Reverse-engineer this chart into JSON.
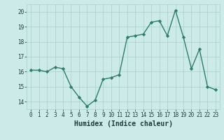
{
  "x": [
    0,
    1,
    2,
    3,
    4,
    5,
    6,
    7,
    8,
    9,
    10,
    11,
    12,
    13,
    14,
    15,
    16,
    17,
    18,
    19,
    20,
    21,
    22,
    23
  ],
  "y": [
    16.1,
    16.1,
    16.0,
    16.3,
    16.2,
    15.0,
    14.3,
    13.7,
    14.1,
    15.5,
    15.6,
    15.8,
    18.3,
    18.4,
    18.5,
    19.3,
    19.4,
    18.4,
    20.1,
    18.3,
    16.2,
    17.5,
    15.0,
    14.8
  ],
  "line_color": "#2d7d6e",
  "marker": "D",
  "markersize": 2.2,
  "linewidth": 1.0,
  "bg_color": "#cceae7",
  "grid_color": "#aacfcc",
  "xlabel": "Humidex (Indice chaleur)",
  "xlim": [
    -0.5,
    23.5
  ],
  "ylim": [
    13.5,
    20.5
  ],
  "yticks": [
    14,
    15,
    16,
    17,
    18,
    19,
    20
  ],
  "xtick_labels": [
    "0",
    "1",
    "2",
    "3",
    "4",
    "5",
    "6",
    "7",
    "8",
    "9",
    "10",
    "11",
    "12",
    "13",
    "14",
    "15",
    "16",
    "17",
    "18",
    "19",
    "20",
    "21",
    "22",
    "23"
  ],
  "tick_fontsize": 5.5,
  "xlabel_fontsize": 7.0,
  "tick_color": "#1a3c3a"
}
